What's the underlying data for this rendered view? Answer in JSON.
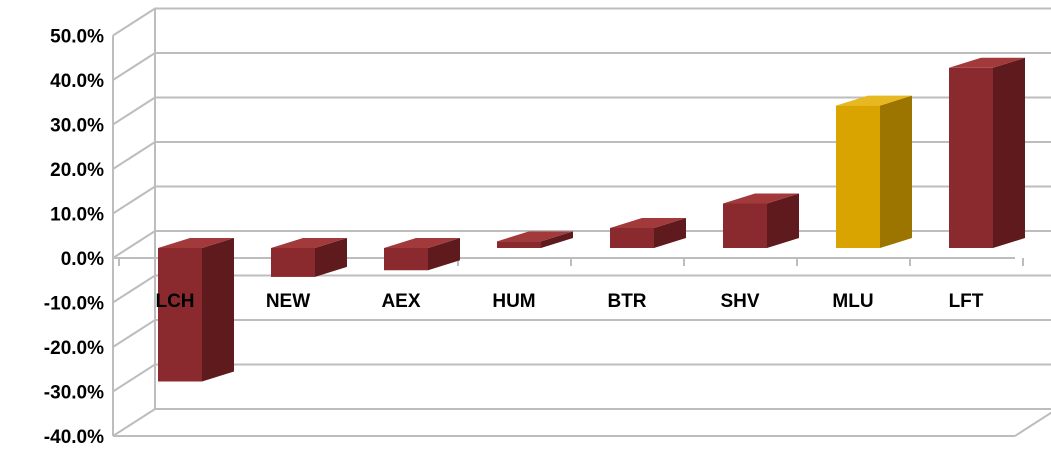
{
  "chart_data": {
    "type": "bar",
    "style": "3d-column",
    "categories": [
      "LCH",
      "NEW",
      "AEX",
      "HUM",
      "BTR",
      "SHV",
      "MLU",
      "LFT"
    ],
    "values": [
      -30.0,
      -6.5,
      -5.0,
      1.5,
      4.5,
      10.0,
      32.0,
      40.5
    ],
    "highlight_index": 6,
    "ylim": [
      -40,
      50
    ],
    "yticks": [
      "50.0%",
      "40.0%",
      "30.0%",
      "20.0%",
      "10.0%",
      "0.0%",
      "-10.0%",
      "-20.0%",
      "-30.0%",
      "-40.0%"
    ],
    "ytick_values": [
      50,
      40,
      30,
      20,
      10,
      0,
      -10,
      -20,
      -30,
      -40
    ],
    "grid": true,
    "legend": "none",
    "colors": {
      "bar_front": "#8B2A2E",
      "bar_side": "#5E1A1C",
      "bar_top": "#A23A3C",
      "highlight_front": "#D9A400",
      "highlight_side": "#9C7400",
      "highlight_top": "#E8B820",
      "grid": "#BDBDBD"
    }
  }
}
